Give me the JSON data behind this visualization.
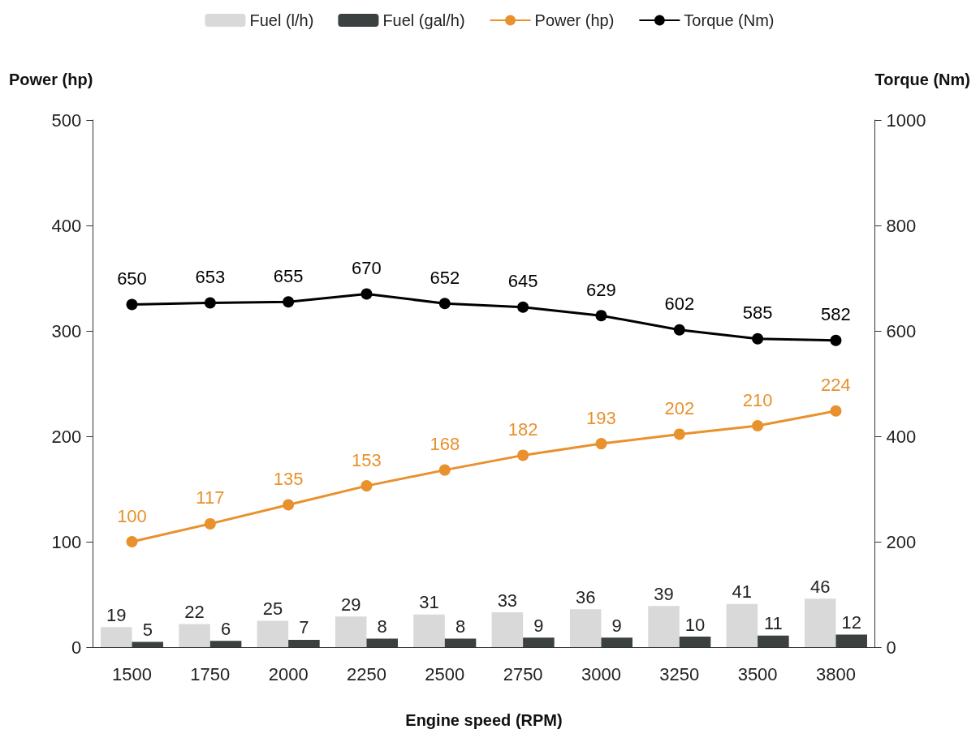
{
  "chart_data": {
    "type": "bar",
    "xlabel": "Engine speed (RPM)",
    "ylabel": "Power (hp)",
    "y2label": "Torque (Nm)",
    "categories": [
      "1500",
      "1750",
      "2000",
      "2250",
      "2500",
      "2750",
      "3000",
      "3250",
      "3500",
      "3800"
    ],
    "series": [
      {
        "name": "Fuel (l/h)",
        "color": "#d9d9d9",
        "values": [
          19,
          22,
          25,
          29,
          31,
          33,
          36,
          39,
          41,
          46
        ]
      },
      {
        "name": "Fuel (gal/h)",
        "color": "#3b4040",
        "values": [
          5,
          6,
          7,
          8,
          8,
          9,
          9,
          10,
          11,
          12
        ]
      },
      {
        "name": "Power (hp)",
        "type": "line",
        "color": "#e8912d",
        "values": [
          100,
          117,
          135,
          153,
          168,
          182,
          193,
          202,
          210,
          224
        ]
      },
      {
        "name": "Torque (Nm)",
        "type": "line",
        "axis": "y2",
        "color": "#000000",
        "values": [
          650,
          653,
          655,
          670,
          652,
          645,
          629,
          602,
          585,
          582
        ]
      }
    ],
    "ylim": [
      0,
      500
    ],
    "yticks": [
      0,
      100,
      200,
      300,
      400,
      500
    ],
    "y2lim": [
      0,
      1000
    ],
    "y2ticks": [
      0,
      200,
      400,
      600,
      800,
      1000
    ],
    "data_labels": true,
    "legend": "top",
    "marker": "circle"
  }
}
